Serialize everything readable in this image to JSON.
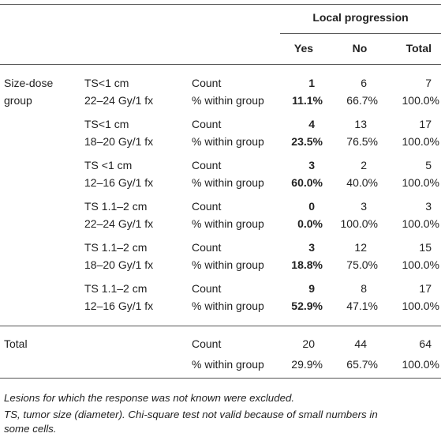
{
  "header": {
    "group_title": "Local progression",
    "columns": [
      "Yes",
      "No",
      "Total"
    ]
  },
  "row_group_label": [
    "Size-dose",
    "group"
  ],
  "groups": [
    {
      "ts": "TS<1 cm",
      "dose": "22–24 Gy/1 fx",
      "count": {
        "label": "Count",
        "yes": "1",
        "no": "6",
        "total": "7"
      },
      "pct": {
        "label": "% within group",
        "yes": "11.1%",
        "no": "66.7%",
        "total": "100.0%"
      }
    },
    {
      "ts": "TS<1 cm",
      "dose": "18–20 Gy/1 fx",
      "count": {
        "label": "Count",
        "yes": "4",
        "no": "13",
        "total": "17"
      },
      "pct": {
        "label": "% within group",
        "yes": "23.5%",
        "no": "76.5%",
        "total": "100.0%"
      }
    },
    {
      "ts": "TS <1 cm",
      "dose": "12–16 Gy/1 fx",
      "count": {
        "label": "Count",
        "yes": "3",
        "no": "2",
        "total": "5"
      },
      "pct": {
        "label": "% within group",
        "yes": "60.0%",
        "no": "40.0%",
        "total": "100.0%"
      }
    },
    {
      "ts": "TS 1.1–2 cm",
      "dose": "22–24 Gy/1 fx",
      "count": {
        "label": "Count",
        "yes": "0",
        "no": "3",
        "total": "3"
      },
      "pct": {
        "label": "% within group",
        "yes": "0.0%",
        "no": "100.0%",
        "total": "100.0%"
      }
    },
    {
      "ts": "TS 1.1–2 cm",
      "dose": "18–20 Gy/1 fx",
      "count": {
        "label": "Count",
        "yes": "3",
        "no": "12",
        "total": "15"
      },
      "pct": {
        "label": "% within group",
        "yes": "18.8%",
        "no": "75.0%",
        "total": "100.0%"
      }
    },
    {
      "ts": "TS 1.1–2 cm",
      "dose": "12–16 Gy/1 fx",
      "count": {
        "label": "Count",
        "yes": "9",
        "no": "8",
        "total": "17"
      },
      "pct": {
        "label": "% within group",
        "yes": "52.9%",
        "no": "47.1%",
        "total": "100.0%"
      }
    }
  ],
  "total": {
    "label": "Total",
    "count": {
      "label": "Count",
      "yes": "20",
      "no": "44",
      "total": "64"
    },
    "pct": {
      "label": "% within group",
      "yes": "29.9%",
      "no": "65.7%",
      "total": "100.0%"
    }
  },
  "footnotes": [
    "Lesions for which the response was not known were excluded.",
    "TS, tumor size (diameter). Chi-square test not valid because of small numbers in",
    "some cells."
  ]
}
